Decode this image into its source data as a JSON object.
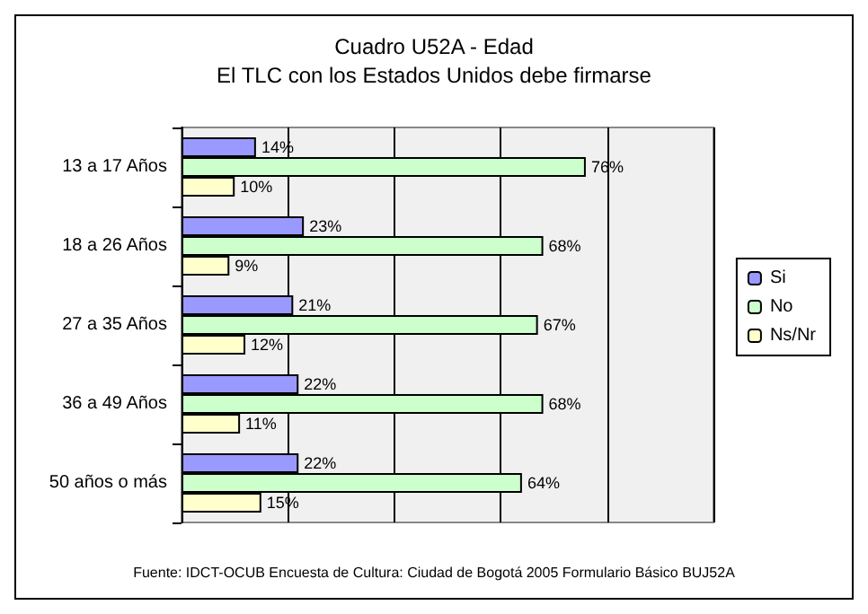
{
  "chart_data": {
    "type": "bar",
    "orientation": "horizontal",
    "title": "Cuadro U52A - Edad",
    "subtitle": "El TLC con los Estados Unidos debe firmarse",
    "categories": [
      "13 a 17 Años",
      "18 a 26 Años",
      "27 a 35 Años",
      "36 a 49 Años",
      "50 años o más"
    ],
    "series": [
      {
        "name": "Si",
        "color": "#9999ff",
        "values": [
          14,
          23,
          21,
          22,
          22
        ],
        "value_labels": [
          "14%",
          "23%",
          "21%",
          "22%",
          "22%"
        ]
      },
      {
        "name": "No",
        "color": "#ccffcc",
        "values": [
          76,
          68,
          67,
          68,
          64
        ],
        "value_labels": [
          "76%",
          "68%",
          "67%",
          "68%",
          "64%"
        ]
      },
      {
        "name": "Ns/Nr",
        "color": "#ffffcc",
        "values": [
          10,
          9,
          12,
          11,
          15
        ],
        "value_labels": [
          "10%",
          "9%",
          "12%",
          "11%",
          "15%"
        ]
      }
    ],
    "xlim": [
      0,
      100
    ],
    "xticks": [
      {
        "value": 0,
        "label": null
      },
      {
        "value": 20,
        "label": null
      },
      {
        "value": 40,
        "label": null
      },
      {
        "value": 60,
        "label": null
      },
      {
        "value": 80,
        "label": null
      },
      {
        "value": 100,
        "label": null
      }
    ],
    "grid": "x",
    "legend": "right",
    "tick_labels": "y",
    "annotations": [
      "Fuente: IDCT-OCUB Encuesta de Cultura: Ciudad de Bogotá 2005 Formulario Básico BUJ52A"
    ]
  }
}
